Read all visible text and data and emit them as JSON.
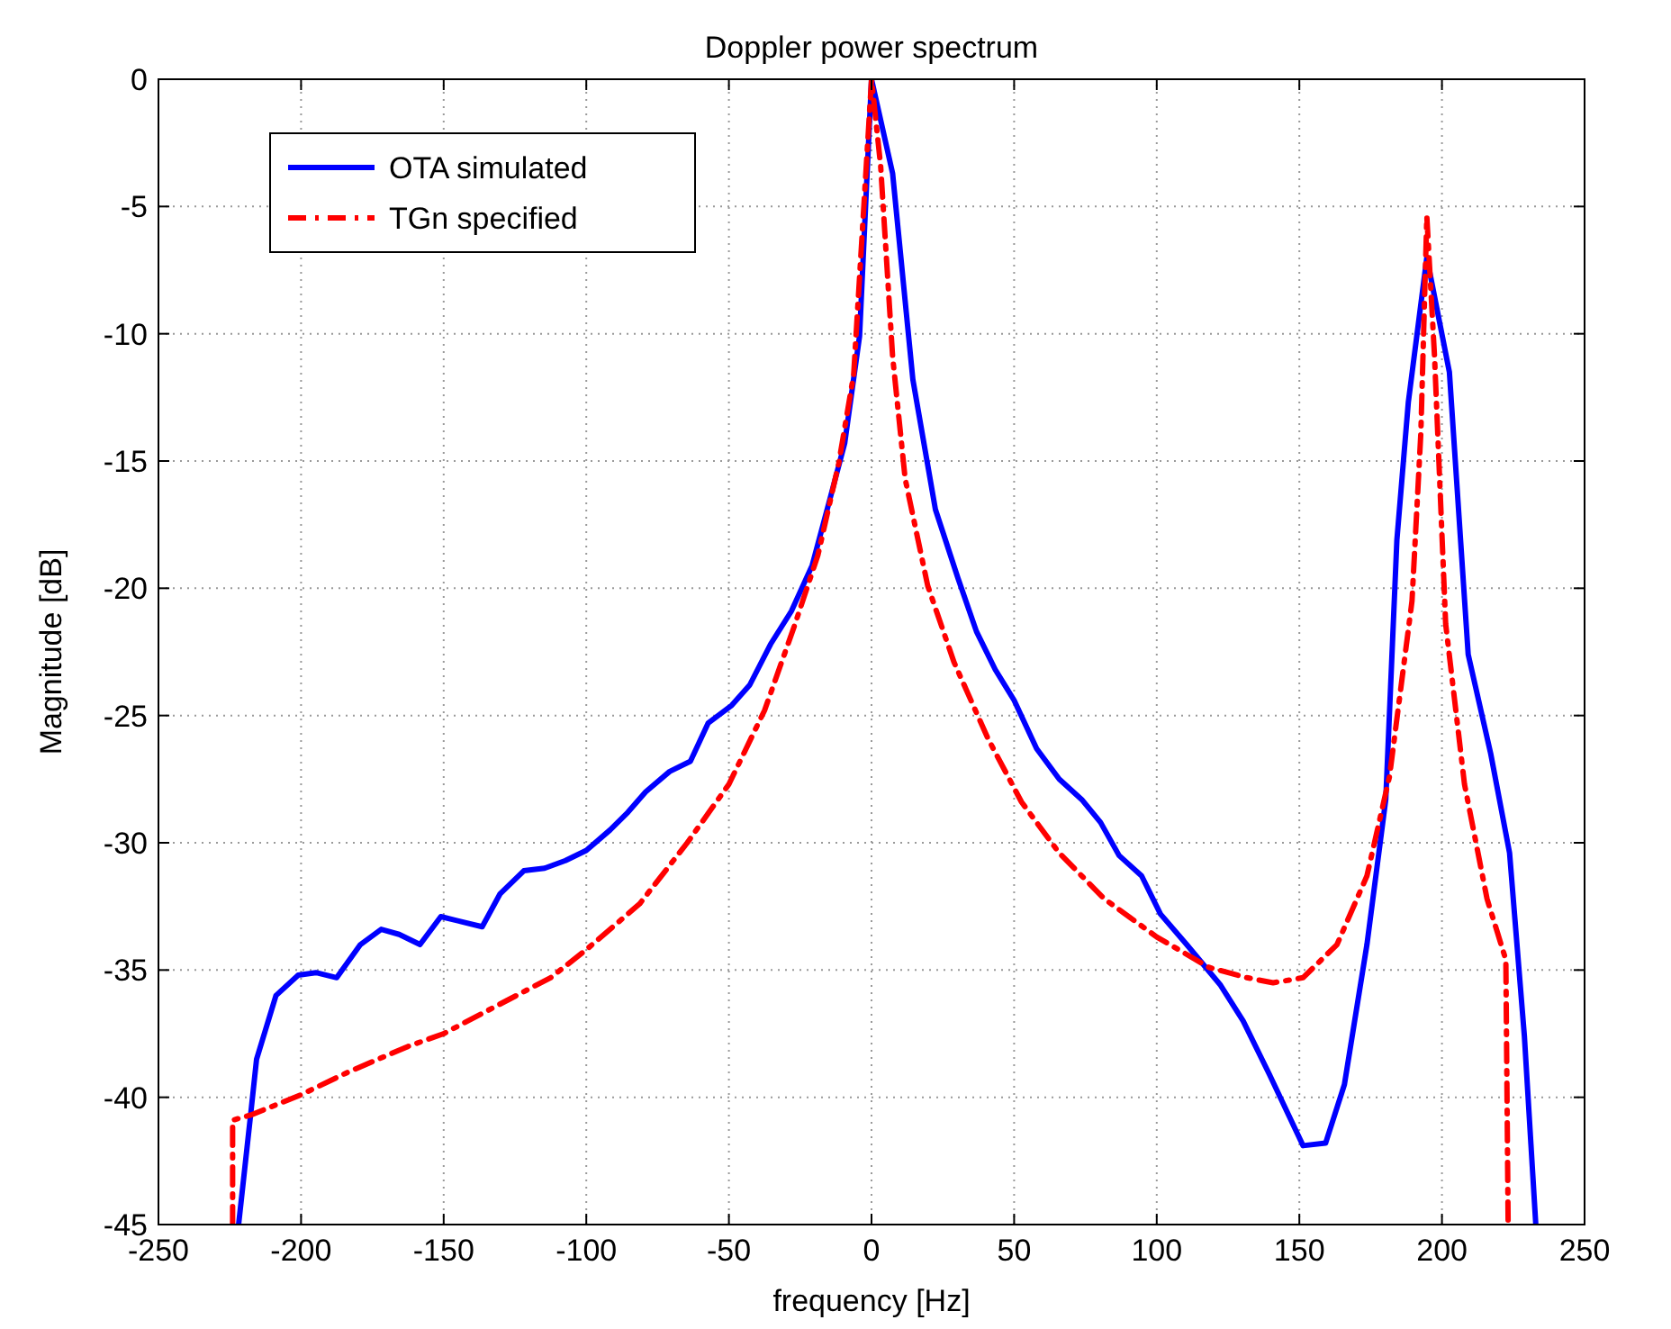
{
  "chart_data": {
    "type": "line",
    "title": "Doppler power spectrum",
    "xlabel": "frequency [Hz]",
    "ylabel": "Magnitude [dB]",
    "xlim": [
      -250,
      250
    ],
    "xticks": [
      -250,
      -200,
      -150,
      -100,
      -50,
      0,
      50,
      100,
      150,
      200,
      250
    ],
    "ylim": [
      -45,
      0
    ],
    "yticks": [
      -45,
      -40,
      -35,
      -30,
      -25,
      -20,
      -15,
      -10,
      -5,
      0
    ],
    "grid": true,
    "legend": "top left",
    "marker": "none",
    "series": [
      {
        "name": "OTA simulated",
        "color": "#0000ff",
        "line_style": "solid",
        "x": [
          -221.9,
          -217.7,
          -215.6,
          -208.8,
          -201,
          -194.8,
          -187.5,
          -179.2,
          -171.9,
          -165.6,
          -158.3,
          -151,
          -143.8,
          -136.5,
          -130.2,
          -121.9,
          -114.6,
          -107.3,
          -100,
          -91.7,
          -85.4,
          -79.2,
          -70.8,
          -63.5,
          -57.3,
          -49,
          -42.7,
          -35.4,
          -28.1,
          -20.8,
          -14.6,
          -9.4,
          -4.2,
          0,
          7.4,
          14.5,
          22.4,
          30.3,
          36.8,
          43.4,
          50,
          57.9,
          65.8,
          73.7,
          80.3,
          86.8,
          94.7,
          101.3,
          110.5,
          122.4,
          130.3,
          139.5,
          151.3,
          159.2,
          165.8,
          173.7,
          180.3,
          184.2,
          188.2,
          194.7,
          202.6,
          209.2,
          217.1,
          223.7,
          228.9,
          232.9
        ],
        "values": [
          -45,
          -40.7,
          -38.5,
          -36,
          -35.2,
          -35.1,
          -35.3,
          -34,
          -33.4,
          -33.6,
          -34,
          -32.9,
          -33.1,
          -33.3,
          -32,
          -31.1,
          -31,
          -30.7,
          -30.3,
          -29.5,
          -28.8,
          -28,
          -27.2,
          -26.8,
          -25.3,
          -24.6,
          -23.8,
          -22.2,
          -20.9,
          -19.1,
          -16.5,
          -14.3,
          -10.1,
          0,
          -3.7,
          -11.8,
          -16.9,
          -19.6,
          -21.7,
          -23.2,
          -24.4,
          -26.3,
          -27.5,
          -28.3,
          -29.2,
          -30.5,
          -31.3,
          -32.8,
          -34,
          -35.6,
          -37,
          -39.1,
          -41.9,
          -41.8,
          -39.5,
          -34,
          -28.3,
          -18.1,
          -12.7,
          -7,
          -11.5,
          -22.6,
          -26.5,
          -30.4,
          -37.6,
          -45
        ]
      },
      {
        "name": "TGn specified",
        "color": "#ff0000",
        "line_style": "dashdot",
        "x": [
          -224,
          -224,
          -217.7,
          -200,
          -183.3,
          -162.5,
          -150,
          -131.3,
          -112.5,
          -100,
          -81.3,
          -64.6,
          -50,
          -37.5,
          -27.1,
          -18.8,
          -11.5,
          -6.25,
          0,
          3.2,
          7.4,
          11.8,
          19.7,
          28.9,
          40.8,
          52.6,
          65.8,
          81.6,
          100,
          118.4,
          131.6,
          140.8,
          151.3,
          163.2,
          173.7,
          181.6,
          189.5,
          192.6,
          194.7,
          197.4,
          201.3,
          207.9,
          215.8,
          222.4,
          223.2
        ],
        "values": [
          -45,
          -40.9,
          -40.7,
          -39.9,
          -39,
          -38,
          -37.5,
          -36.4,
          -35.3,
          -34.2,
          -32.4,
          -30,
          -27.7,
          -24.8,
          -21.5,
          -18.7,
          -15.1,
          -11.6,
          0,
          -3.4,
          -10.9,
          -15.7,
          -19.9,
          -22.9,
          -25.9,
          -28.4,
          -30.4,
          -32.2,
          -33.7,
          -34.9,
          -35.3,
          -35.5,
          -35.3,
          -34,
          -31.3,
          -27.4,
          -20.5,
          -13.9,
          -5.4,
          -10.9,
          -21.4,
          -27.7,
          -32.2,
          -34.6,
          -45
        ]
      }
    ]
  }
}
